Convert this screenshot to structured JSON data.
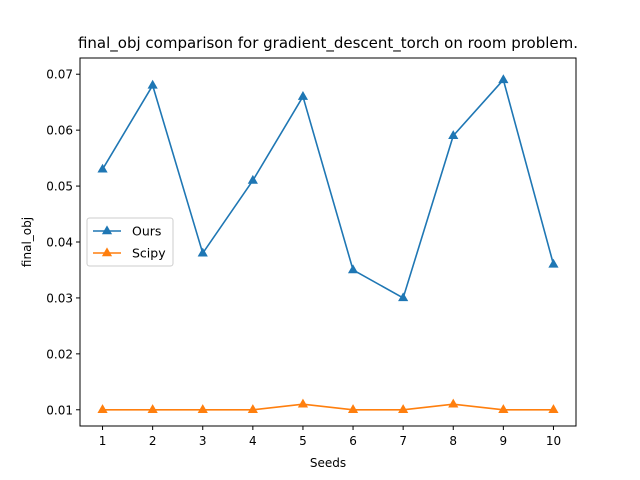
{
  "chart_data": {
    "type": "line",
    "title": "final_obj comparison for gradient_descent_torch on room problem.",
    "xlabel": "Seeds",
    "ylabel": "final_obj",
    "x": [
      1,
      2,
      3,
      4,
      5,
      6,
      7,
      8,
      9,
      10
    ],
    "xticks": [
      "1",
      "2",
      "3",
      "4",
      "5",
      "6",
      "7",
      "8",
      "9",
      "10"
    ],
    "xlim": [
      0.55,
      10.45
    ],
    "ylim": [
      0.0071,
      0.0729
    ],
    "yticks": [
      "0.01",
      "0.02",
      "0.03",
      "0.04",
      "0.05",
      "0.06",
      "0.07"
    ],
    "ytick_values": [
      0.01,
      0.02,
      0.03,
      0.04,
      0.05,
      0.06,
      0.07
    ],
    "grid": false,
    "legend_position": "center-left",
    "series": [
      {
        "name": "Ours",
        "color": "#1f77b4",
        "marker": "triangle",
        "values": [
          0.053,
          0.068,
          0.038,
          0.051,
          0.066,
          0.035,
          0.03,
          0.059,
          0.069,
          0.036
        ]
      },
      {
        "name": "Scipy",
        "color": "#ff7f0e",
        "marker": "triangle",
        "values": [
          0.01,
          0.01,
          0.01,
          0.01,
          0.011,
          0.01,
          0.01,
          0.011,
          0.01,
          0.01
        ]
      }
    ]
  }
}
